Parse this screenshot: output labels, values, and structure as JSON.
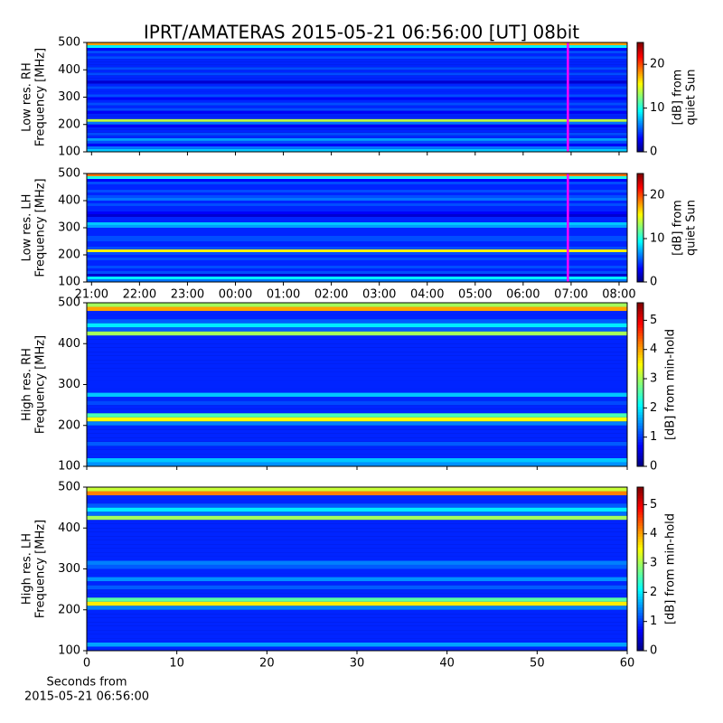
{
  "chart_data": [
    {
      "type": "heatmap",
      "title": "IPRT/AMATERAS 2015-05-21 06:56:00 [UT]   08bit",
      "ylabel": [
        "Low res. RH",
        "Frequency [MHz]"
      ],
      "colorbar_label": [
        "[dB] from",
        "quiet Sun"
      ],
      "cmap": "jet",
      "xlim": [
        20.9,
        32.17
      ],
      "ylim": [
        100,
        500
      ],
      "yticks": [
        100,
        200,
        300,
        400,
        500
      ],
      "clim": [
        0,
        25
      ],
      "cticks": [
        0,
        10,
        20
      ],
      "y": [
        105,
        115,
        125,
        135,
        145,
        155,
        165,
        175,
        185,
        195,
        205,
        215,
        225,
        235,
        245,
        255,
        265,
        275,
        285,
        295,
        305,
        315,
        325,
        335,
        345,
        355,
        365,
        375,
        385,
        395,
        405,
        415,
        425,
        435,
        445,
        455,
        465,
        475,
        485,
        495
      ],
      "values": [
        8,
        6,
        3,
        5,
        7,
        4,
        5,
        4,
        4,
        3,
        6,
        14,
        4,
        4,
        3,
        5,
        4,
        5,
        4,
        3,
        5,
        4,
        4,
        5,
        4,
        2,
        4,
        4,
        5,
        4,
        5,
        4,
        4,
        4,
        5,
        4,
        5,
        3,
        9,
        18
      ],
      "vline": {
        "x": 30.933,
        "color": "#ff00ff"
      }
    },
    {
      "type": "heatmap",
      "ylabel": [
        "Low res. LH",
        "Frequency [MHz]"
      ],
      "colorbar_label": [
        "[dB] from",
        "quiet Sun"
      ],
      "cmap": "jet",
      "xlim": [
        20.9,
        32.17
      ],
      "ylim": [
        100,
        500
      ],
      "yticks": [
        100,
        200,
        300,
        400,
        500
      ],
      "xticks": [
        {
          "value": 21,
          "label": "21:00"
        },
        {
          "value": 22,
          "label": "22:00"
        },
        {
          "value": 23,
          "label": "23:00"
        },
        {
          "value": 24,
          "label": "00:00"
        },
        {
          "value": 25,
          "label": "01:00"
        },
        {
          "value": 26,
          "label": "02:00"
        },
        {
          "value": 27,
          "label": "03:00"
        },
        {
          "value": 28,
          "label": "04:00"
        },
        {
          "value": 29,
          "label": "05:00"
        },
        {
          "value": 30,
          "label": "06:00"
        },
        {
          "value": 31,
          "label": "07:00"
        },
        {
          "value": 32,
          "label": "08:00"
        }
      ],
      "clim": [
        0,
        25
      ],
      "cticks": [
        0,
        10,
        20
      ],
      "y": [
        105,
        115,
        125,
        135,
        145,
        155,
        165,
        175,
        185,
        195,
        205,
        215,
        225,
        235,
        245,
        255,
        265,
        275,
        285,
        295,
        305,
        315,
        325,
        335,
        345,
        355,
        365,
        375,
        385,
        395,
        405,
        415,
        425,
        435,
        445,
        455,
        465,
        475,
        485,
        495
      ],
      "values": [
        6,
        9,
        2,
        5,
        4,
        5,
        4,
        4,
        5,
        4,
        5,
        16,
        5,
        4,
        4,
        5,
        5,
        4,
        4,
        4,
        7,
        8,
        4,
        4,
        2,
        3,
        4,
        4,
        5,
        4,
        6,
        5,
        4,
        5,
        4,
        4,
        5,
        3,
        10,
        19
      ],
      "vline": {
        "x": 30.933,
        "color": "#ff00ff"
      }
    },
    {
      "type": "heatmap",
      "ylabel": [
        "High res. RH",
        "Frequency [MHz]"
      ],
      "colorbar_label": [
        "[dB] from min-hold"
      ],
      "cmap": "jet",
      "xlim": [
        0,
        60
      ],
      "ylim": [
        100,
        500
      ],
      "yticks": [
        100,
        200,
        300,
        400,
        500
      ],
      "clim": [
        0,
        5.6
      ],
      "cticks": [
        0,
        1,
        2,
        3,
        4,
        5
      ],
      "y": [
        105,
        115,
        125,
        135,
        145,
        155,
        165,
        175,
        185,
        195,
        205,
        215,
        225,
        235,
        245,
        255,
        265,
        275,
        285,
        295,
        305,
        315,
        325,
        335,
        345,
        355,
        365,
        375,
        385,
        395,
        405,
        415,
        425,
        435,
        445,
        455,
        465,
        475,
        485,
        495
      ],
      "values": [
        1.5,
        1.8,
        0.9,
        0.9,
        0.9,
        1.2,
        0.9,
        0.9,
        0.9,
        0.9,
        1.4,
        3.5,
        2.5,
        0.9,
        0.9,
        1.1,
        0.9,
        1.8,
        0.9,
        0.9,
        0.9,
        0.9,
        0.9,
        0.9,
        0.9,
        0.9,
        0.9,
        0.9,
        0.9,
        0.9,
        0.9,
        0.9,
        3.0,
        1.2,
        2.0,
        1.2,
        0.9,
        0.9,
        4.0,
        3.0
      ]
    },
    {
      "type": "heatmap",
      "ylabel": [
        "High res. LH",
        "Frequency [MHz]"
      ],
      "colorbar_label": [
        "[dB] from min-hold"
      ],
      "cmap": "jet",
      "xlim": [
        0,
        60
      ],
      "ylim": [
        100,
        500
      ],
      "yticks": [
        100,
        200,
        300,
        400,
        500
      ],
      "xticks": [
        0,
        10,
        20,
        30,
        40,
        50,
        60
      ],
      "xlabel": [
        "Seconds from",
        "2015-05-21 06:56:00"
      ],
      "clim": [
        0,
        5.6
      ],
      "cticks": [
        0,
        1,
        2,
        3,
        4,
        5
      ],
      "y": [
        105,
        115,
        125,
        135,
        145,
        155,
        165,
        175,
        185,
        195,
        205,
        215,
        225,
        235,
        245,
        255,
        265,
        275,
        285,
        295,
        305,
        315,
        325,
        335,
        345,
        355,
        365,
        375,
        385,
        395,
        405,
        415,
        425,
        435,
        445,
        455,
        465,
        475,
        485,
        495
      ],
      "values": [
        0.9,
        1.6,
        0.9,
        0.9,
        0.9,
        0.9,
        0.9,
        0.9,
        0.9,
        0.9,
        1.4,
        3.6,
        2.6,
        0.9,
        0.9,
        1.2,
        0.9,
        1.5,
        0.9,
        0.9,
        1.2,
        1.4,
        0.9,
        0.9,
        0.9,
        0.9,
        0.9,
        0.9,
        0.9,
        0.9,
        0.9,
        0.9,
        3.0,
        1.3,
        2.0,
        1.2,
        0.9,
        0.9,
        4.2,
        3.2
      ]
    }
  ]
}
